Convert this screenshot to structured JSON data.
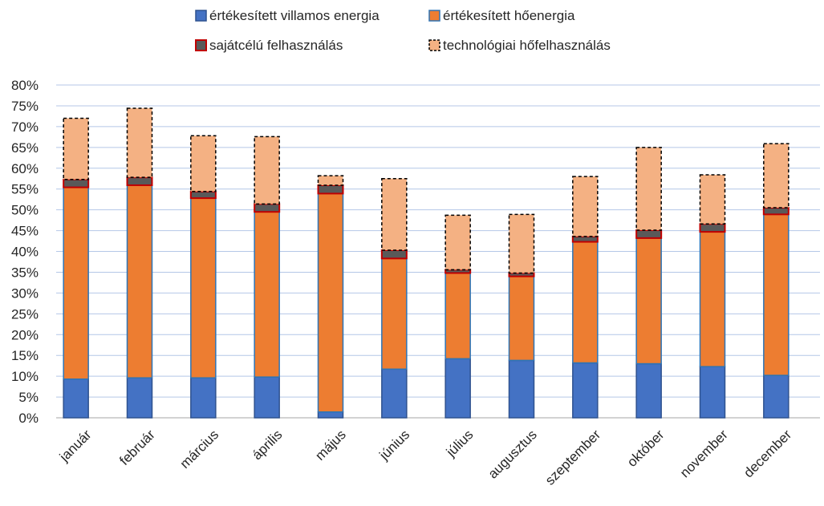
{
  "chart_data": {
    "type": "bar",
    "stacked": true,
    "categories": [
      "január",
      "február",
      "március",
      "április",
      "május",
      "június",
      "július",
      "augusztus",
      "szeptember",
      "október",
      "november",
      "december"
    ],
    "yticks": [
      "0%",
      "5%",
      "10%",
      "15%",
      "20%",
      "25%",
      "30%",
      "35%",
      "40%",
      "45%",
      "50%",
      "55%",
      "60%",
      "65%",
      "70%",
      "75%",
      "80%"
    ],
    "ylim": [
      0,
      80
    ],
    "unit": "%",
    "grid": true,
    "legend_position": "top",
    "series": [
      {
        "name": "értékesített villamos energia",
        "color": "#4472C4",
        "border": "#2F528F",
        "values": [
          9.3,
          9.6,
          9.6,
          9.8,
          1.4,
          11.7,
          14.2,
          13.8,
          13.2,
          13.0,
          12.3,
          10.2
        ]
      },
      {
        "name": "értékesített hőenergia",
        "color": "#ED7D31",
        "border": "#2E75B6",
        "values": [
          46.1,
          46.3,
          43.2,
          39.7,
          52.5,
          26.6,
          20.6,
          20.2,
          29.1,
          30.2,
          32.4,
          38.7
        ]
      },
      {
        "name": "sajátcélú felhasználás",
        "color": "#595959",
        "border": "#C00000",
        "values": [
          1.9,
          1.9,
          1.6,
          1.9,
          2.0,
          2.0,
          0.8,
          0.8,
          1.3,
          1.9,
          1.9,
          1.6
        ]
      },
      {
        "name": "technológiai hőfelhasználás",
        "color": "#F4B183",
        "border": "#000000",
        "values": [
          14.7,
          16.6,
          13.4,
          16.2,
          2.3,
          17.2,
          13.1,
          14.1,
          14.4,
          19.9,
          11.8,
          15.4
        ]
      }
    ]
  }
}
